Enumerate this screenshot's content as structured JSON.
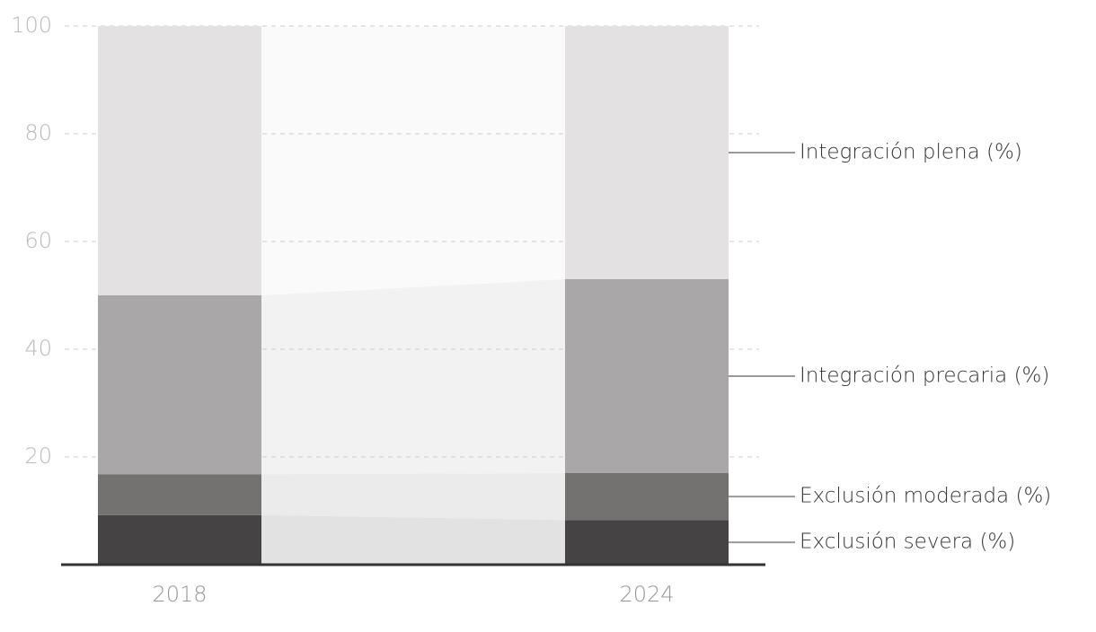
{
  "chart_data": {
    "type": "stacked_bar",
    "categories": [
      "2018",
      "2024"
    ],
    "series": [
      {
        "name": "Exclusión severa (%)",
        "color": "#454344",
        "values": [
          9.2,
          8.3
        ]
      },
      {
        "name": "Exclusión moderada (%)",
        "color": "#747270",
        "values": [
          7.6,
          8.7
        ]
      },
      {
        "name": "Integración precaria (%)",
        "color": "#a9a7a8",
        "values": [
          33.2,
          36.0
        ]
      },
      {
        "name": "Integración plena (%)",
        "color": "#e3e1e2",
        "values": [
          50.0,
          47.0
        ]
      }
    ],
    "ylim": [
      0,
      100
    ],
    "yticks": [
      20,
      40,
      60,
      80,
      100
    ],
    "grid": true
  }
}
